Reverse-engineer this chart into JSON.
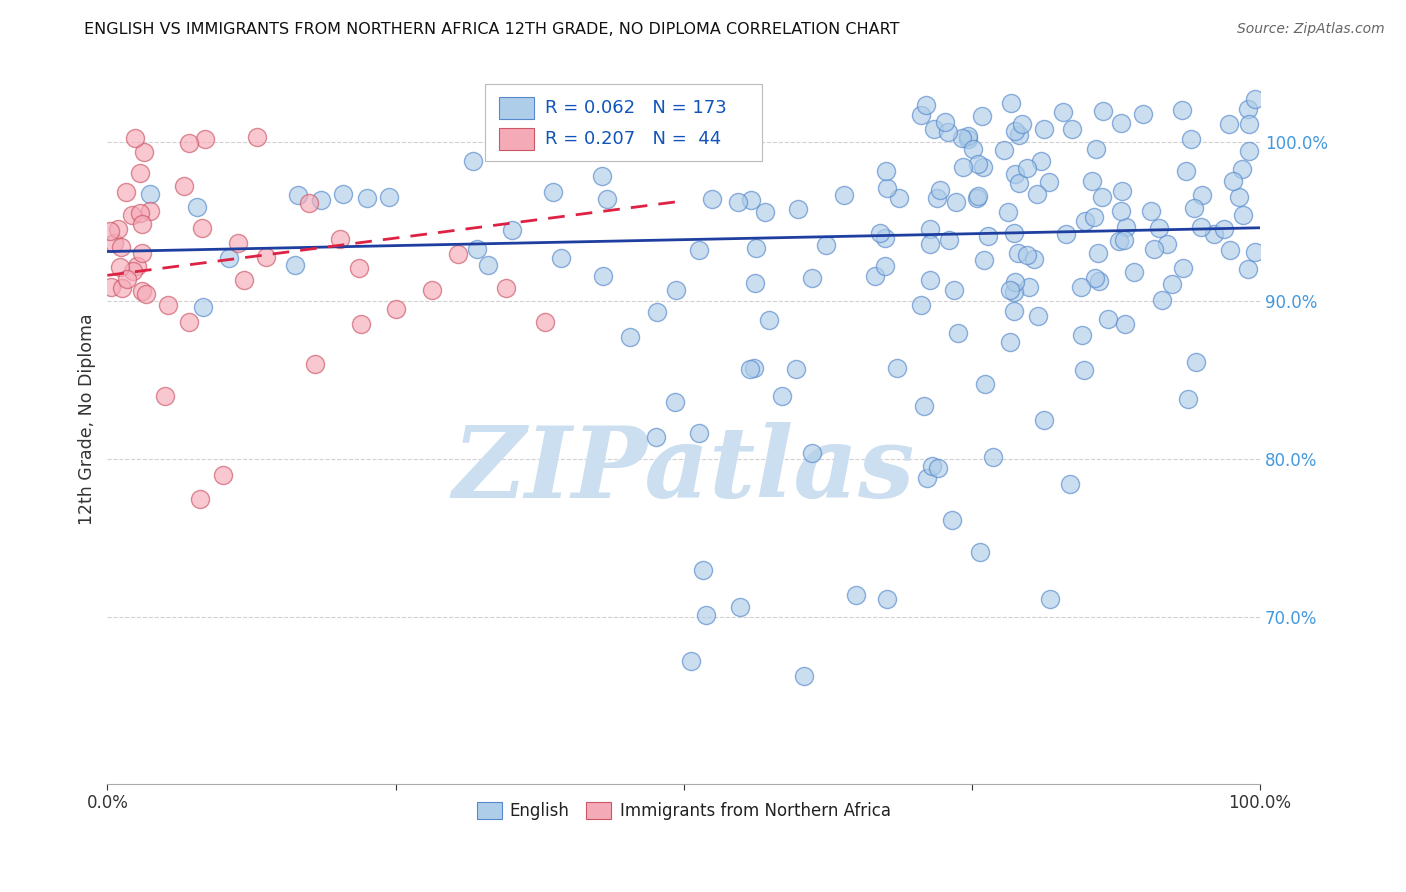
{
  "title": "ENGLISH VS IMMIGRANTS FROM NORTHERN AFRICA 12TH GRADE, NO DIPLOMA CORRELATION CHART",
  "source": "Source: ZipAtlas.com",
  "ylabel": "12th Grade, No Diploma",
  "legend_english": "English",
  "legend_immigrants": "Immigrants from Northern Africa",
  "R_english": 0.062,
  "N_english": 173,
  "R_immigrants": 0.207,
  "N_immigrants": 44,
  "blue_face": "#aecde8",
  "blue_edge": "#5588cc",
  "pink_face": "#f5aab8",
  "pink_edge": "#cc5566",
  "blue_line": "#1e3fa0",
  "pink_line": "#dd2244",
  "right_tick_color": "#4499dd",
  "ylabel_color": "#333333",
  "title_color": "#111111",
  "source_color": "#666666",
  "grid_color": "#cccccc",
  "bg_color": "#ffffff",
  "watermark": "ZIPatlas",
  "watermark_color": "#ccdff0",
  "xlim": [
    0.0,
    1.0
  ],
  "ylim": [
    0.595,
    1.055
  ],
  "right_yticks": [
    0.7,
    0.8,
    0.9,
    1.0
  ],
  "right_yticklabels": [
    "70.0%",
    "80.0%",
    "90.0%",
    "100.0%"
  ],
  "xtick_positions": [
    0.0,
    0.25,
    0.5,
    0.75,
    1.0
  ],
  "blue_trend_x": [
    0.0,
    1.0
  ],
  "blue_trend_y": [
    0.931,
    0.946
  ],
  "pink_trend_x": [
    0.0,
    0.5
  ],
  "pink_trend_y": [
    0.916,
    0.963
  ]
}
